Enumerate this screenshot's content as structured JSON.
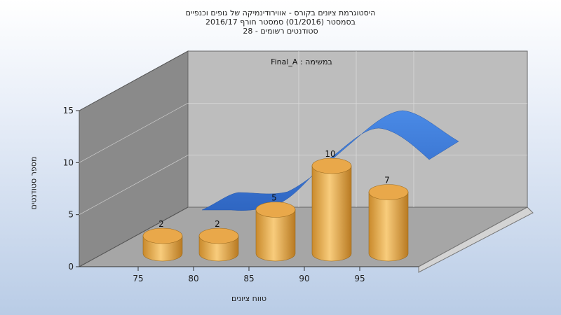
{
  "chart_data": {
    "type": "bar",
    "title_lines": [
      "היסטוגרמת ציונים בקורס - אווירודינמיקה של גופים וכנפיים",
      "בסמסטר  (01/2016)  סמסטר חורף 2016/17",
      "סטודנטים רשומים - 28"
    ],
    "annotation": "Final_A : במשימה",
    "xlabel": "טווח ציונים",
    "ylabel": "מספר סטודנטים",
    "x_ticks": [
      "75",
      "80",
      "85",
      "90",
      "95"
    ],
    "y_ticks": [
      "0",
      "5",
      "10",
      "15"
    ],
    "ylim": [
      0,
      15
    ],
    "bars": [
      {
        "range": "70-75",
        "value": 2,
        "label": "2"
      },
      {
        "range": "75-80",
        "value": 2,
        "label": "2"
      },
      {
        "range": "80-85",
        "value": 5,
        "label": "5"
      },
      {
        "range": "85-90",
        "value": 10,
        "label": "10"
      },
      {
        "range": "90-95",
        "value": 7,
        "label": "7"
      }
    ],
    "series_colors": {
      "bars": "#e9a84a",
      "curve": "#3f7fd8"
    },
    "grid": true
  }
}
